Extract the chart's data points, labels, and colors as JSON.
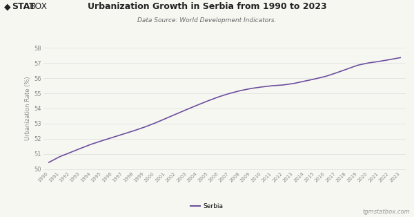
{
  "title": "Urbanization Growth in Serbia from 1990 to 2023",
  "subtitle": "Data Source: World Development Indicators.",
  "ylabel": "Urbanization Rate (%)",
  "line_color": "#6b4f9e",
  "background_color": "#f7f7f2",
  "legend_label": "Serbia",
  "watermark": "tgmstatbox.com",
  "years": [
    1990,
    1991,
    1992,
    1993,
    1994,
    1995,
    1996,
    1997,
    1998,
    1999,
    2000,
    2001,
    2002,
    2003,
    2004,
    2005,
    2006,
    2007,
    2008,
    2009,
    2010,
    2011,
    2012,
    2013,
    2014,
    2015,
    2016,
    2017,
    2018,
    2019,
    2020,
    2021,
    2022,
    2023
  ],
  "values": [
    50.45,
    50.82,
    51.1,
    51.38,
    51.65,
    51.88,
    52.1,
    52.32,
    52.54,
    52.78,
    53.05,
    53.35,
    53.65,
    53.95,
    54.24,
    54.52,
    54.78,
    55.0,
    55.18,
    55.32,
    55.42,
    55.5,
    55.55,
    55.65,
    55.8,
    55.95,
    56.12,
    56.35,
    56.6,
    56.85,
    57.0,
    57.1,
    57.22,
    57.35
  ],
  "ylim": [
    50.0,
    58.0
  ],
  "yticks": [
    50,
    51,
    52,
    53,
    54,
    55,
    56,
    57,
    58
  ],
  "ytick_labels": [
    "50",
    "51",
    "52",
    "53",
    "54",
    "55",
    "56",
    "57",
    "58"
  ],
  "grid_color": "#dddddd",
  "tick_color": "#888888",
  "title_fontsize": 9,
  "subtitle_fontsize": 6.5,
  "ylabel_fontsize": 6,
  "xtick_fontsize": 5,
  "ytick_fontsize": 6,
  "legend_fontsize": 6.5,
  "watermark_fontsize": 6
}
